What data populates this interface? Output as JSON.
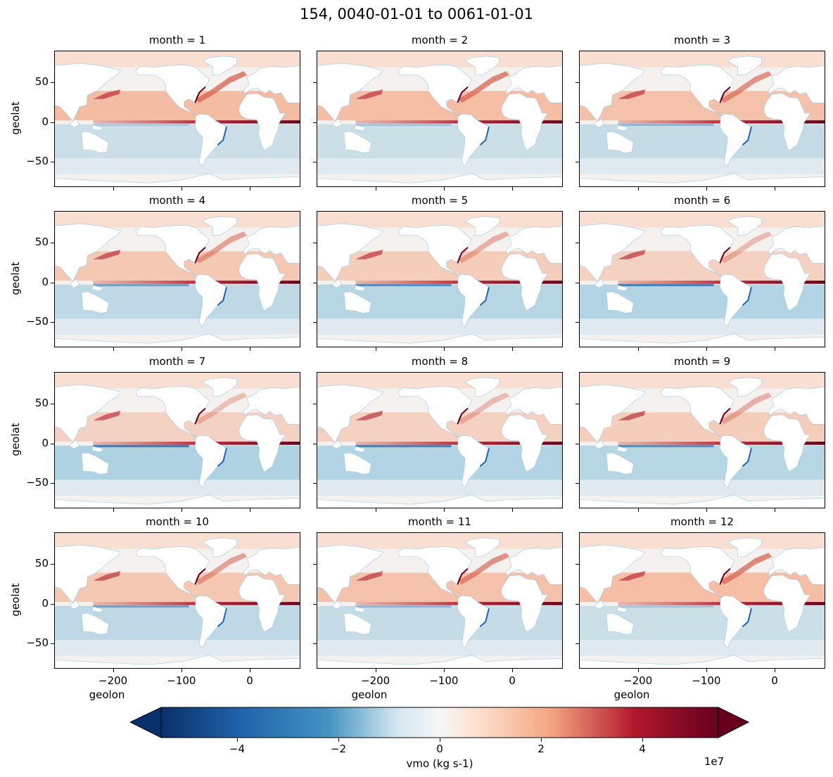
{
  "chart_data": {
    "type": "heatmap",
    "title": "154, 0040-01-01 to 0061-01-01",
    "panels": [
      {
        "title": "month = 1"
      },
      {
        "title": "month = 2"
      },
      {
        "title": "month = 3"
      },
      {
        "title": "month = 4"
      },
      {
        "title": "month = 5"
      },
      {
        "title": "month = 6"
      },
      {
        "title": "month = 7"
      },
      {
        "title": "month = 8"
      },
      {
        "title": "month = 9"
      },
      {
        "title": "month = 10"
      },
      {
        "title": "month = 11"
      },
      {
        "title": "month = 12"
      }
    ],
    "xlabel": "geolon",
    "ylabel": "geolat",
    "x_ticks": [
      "−200",
      "−100",
      "0"
    ],
    "x_tick_values": [
      -200,
      -100,
      0
    ],
    "xlim": [
      -286,
      74
    ],
    "y_ticks": [
      "50",
      "0",
      "−50"
    ],
    "y_tick_values": [
      50,
      0,
      -50
    ],
    "ylim": [
      -82,
      90
    ],
    "colorbar": {
      "label": "vmo (kg s-1)",
      "ticks": [
        "−4",
        "−2",
        "0",
        "2",
        "4"
      ],
      "tick_values": [
        -4,
        -2,
        0,
        2,
        4
      ],
      "range": [
        -5.5,
        5.5
      ],
      "multiplier": "1e7",
      "extend": "both",
      "colormap": "RdBu_r"
    },
    "colors": {
      "negative": "#08306b",
      "mid_negative": "#4393c3",
      "zero": "#f7f7f7",
      "mid_positive": "#f4a582",
      "positive": "#67001f"
    }
  }
}
